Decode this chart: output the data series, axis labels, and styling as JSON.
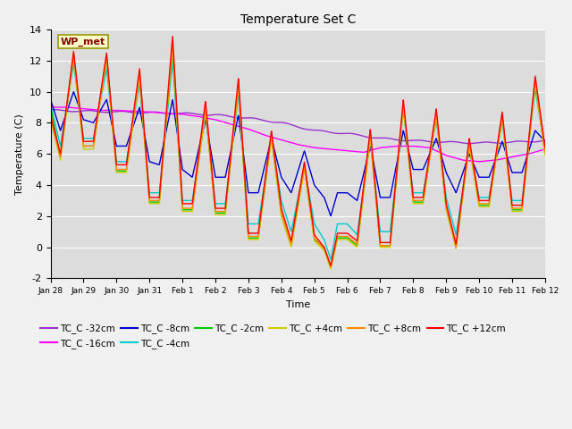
{
  "title": "Temperature Set C",
  "xlabel": "Time",
  "ylabel": "Temperature (C)",
  "ylim": [
    -2,
    14
  ],
  "xlim": [
    0,
    15
  ],
  "bg_color": "#dcdcdc",
  "fig_bg": "#f0f0f0",
  "annotation_label": "WP_met",
  "annotation_color": "#8B0000",
  "annotation_bg": "#ffffcc",
  "annotation_border": "#999900",
  "series_colors": {
    "TC_C -32cm": "#9932CC",
    "TC_C -16cm": "#FF00FF",
    "TC_C -8cm": "#0000CC",
    "TC_C -4cm": "#00CCCC",
    "TC_C -2cm": "#00CC00",
    "TC_C +4cm": "#CCCC00",
    "TC_C +8cm": "#FF8800",
    "TC_C +12cm": "#FF0000"
  },
  "xtick_labels": [
    "Jan 28",
    "Jan 29",
    "Jan 30",
    "Jan 31",
    "Feb 1",
    "Feb 2",
    "Feb 3",
    "Feb 4",
    "Feb 5",
    "Feb 6",
    "Feb 7",
    "Feb 8",
    "Feb 9",
    "Feb 10",
    "Feb 11",
    "Feb 12"
  ],
  "xtick_positions": [
    0,
    1,
    2,
    3,
    4,
    5,
    6,
    7,
    8,
    9,
    10,
    11,
    12,
    13,
    14,
    15
  ],
  "ytick_labels": [
    "-2",
    "0",
    "2",
    "4",
    "6",
    "8",
    "10",
    "12",
    "14"
  ],
  "ytick_positions": [
    -2,
    0,
    2,
    4,
    6,
    8,
    10,
    12,
    14
  ],
  "legend_order": [
    "TC_C -32cm",
    "TC_C -16cm",
    "TC_C -8cm",
    "TC_C -4cm",
    "TC_C -2cm",
    "TC_C +4cm",
    "TC_C +8cm",
    "TC_C +12cm"
  ]
}
